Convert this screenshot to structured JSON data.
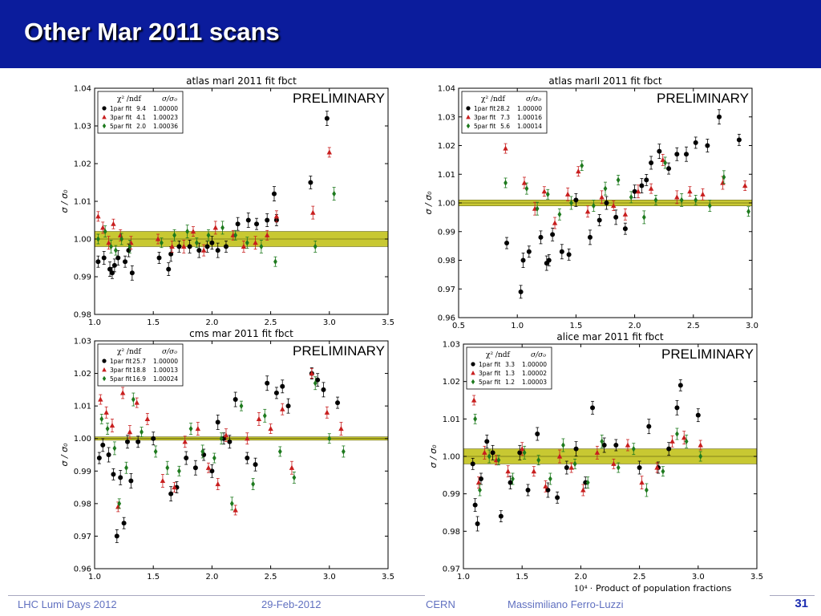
{
  "slide": {
    "title": "Other Mar 2011 scans",
    "footer_event": "LHC Lumi Days 2012",
    "footer_date": "29-Feb-2012",
    "footer_org": "CERN",
    "footer_author": "Massimiliano Ferro-Luzzi",
    "page_number": "31"
  },
  "colors": {
    "title_bar": "#0b1c9c",
    "series_1par": "#000000",
    "series_3par": "#c81e1e",
    "series_5par": "#1e7a1e",
    "band_fill": "#c8c832"
  },
  "chart_data": [
    {
      "type": "scatter",
      "title": "atlas marI 2011 fit  fbct",
      "annotation": "PRELIMINARY",
      "ylabel": "σ / σ₀",
      "xlabel": "",
      "xlim": [
        1.0,
        3.5
      ],
      "ylim": [
        0.98,
        1.04
      ],
      "xticks": [
        "1.0",
        "1.5",
        "2.0",
        "2.5",
        "3.0",
        "3.5"
      ],
      "yticks": [
        "0.98",
        "0.99",
        "1.00",
        "1.01",
        "1.02",
        "1.03",
        "1.04"
      ],
      "grid": false,
      "legend_position": "top-left",
      "legend_header": [
        "χ² /ndf",
        "σ/σ₀"
      ],
      "band": [
        0.998,
        1.002
      ],
      "series": [
        {
          "name": "1par fit",
          "chi2ndf": "9.4",
          "ratio": "1.00000",
          "marker": "circle",
          "x": [
            1.03,
            1.08,
            1.13,
            1.15,
            1.17,
            1.2,
            1.26,
            1.29,
            1.32,
            1.55,
            1.63,
            1.65,
            1.72,
            1.81,
            1.89,
            1.96,
            2.0,
            2.05,
            2.12,
            2.22,
            2.31,
            2.38,
            2.47,
            2.53,
            2.55,
            2.84,
            2.98
          ],
          "y": [
            0.994,
            0.995,
            0.992,
            0.991,
            0.993,
            0.995,
            0.994,
            0.997,
            0.991,
            0.995,
            0.992,
            0.996,
            0.998,
            0.998,
            0.997,
            0.998,
            0.999,
            0.997,
            0.998,
            1.004,
            1.005,
            1.004,
            1.005,
            1.012,
            1.005,
            1.015,
            1.032
          ]
        },
        {
          "name": "3par fit",
          "chi2ndf": "4.1",
          "ratio": "1.00023",
          "marker": "triangle",
          "x": [
            1.03,
            1.07,
            1.12,
            1.16,
            1.22,
            1.31,
            1.54,
            1.66,
            1.76,
            1.84,
            1.93,
            2.03,
            2.18,
            2.27,
            2.37,
            2.47,
            2.55,
            2.86,
            3.0
          ],
          "y": [
            1.006,
            1.003,
            0.999,
            1.004,
            1.001,
            0.999,
            1.0,
            0.998,
            0.998,
            1.002,
            0.997,
            1.003,
            1.001,
            0.998,
            0.999,
            1.001,
            1.006,
            1.007,
            1.023
          ]
        },
        {
          "name": "5par fit",
          "chi2ndf": "2.0",
          "ratio": "1.00036",
          "marker": "diamond",
          "x": [
            1.03,
            1.09,
            1.14,
            1.18,
            1.23,
            1.3,
            1.57,
            1.68,
            1.79,
            1.87,
            1.97,
            2.09,
            2.2,
            2.3,
            2.42,
            2.54,
            2.88,
            3.04
          ],
          "y": [
            1.0,
            1.002,
            0.998,
            0.997,
            1.0,
            0.998,
            0.999,
            1.001,
            1.002,
            0.999,
            1.001,
            1.003,
            1.001,
            0.999,
            0.998,
            0.994,
            0.998,
            1.012
          ]
        }
      ]
    },
    {
      "type": "scatter",
      "title": "atlas marII 2011 fit  fbct",
      "annotation": "PRELIMINARY",
      "ylabel": "σ / σ₀",
      "xlabel": "",
      "xlim": [
        0.5,
        3.0
      ],
      "ylim": [
        0.96,
        1.04
      ],
      "xticks": [
        "0.5",
        "1.0",
        "1.5",
        "2.0",
        "2.5",
        "3.0"
      ],
      "yticks": [
        "0.96",
        "0.97",
        "0.98",
        "0.99",
        "1.00",
        "1.01",
        "1.02",
        "1.03",
        "1.04"
      ],
      "grid": false,
      "legend_position": "top-left",
      "legend_header": [
        "χ² /ndf",
        "σ/σ₀"
      ],
      "band": [
        0.999,
        1.001
      ],
      "series": [
        {
          "name": "1par fit",
          "chi2ndf": "28.2",
          "ratio": "1.00000",
          "marker": "circle",
          "x": [
            0.91,
            1.03,
            1.05,
            1.1,
            1.2,
            1.25,
            1.27,
            1.3,
            1.38,
            1.44,
            1.5,
            1.62,
            1.7,
            1.76,
            1.84,
            1.92,
            2.0,
            2.06,
            2.1,
            2.14,
            2.21,
            2.29,
            2.36,
            2.44,
            2.52,
            2.62,
            2.72,
            2.89
          ],
          "y": [
            0.986,
            0.969,
            0.98,
            0.983,
            0.988,
            0.979,
            0.98,
            0.989,
            0.983,
            0.982,
            1.001,
            0.988,
            0.994,
            1.0,
            0.995,
            0.991,
            1.004,
            1.006,
            1.008,
            1.014,
            1.018,
            1.012,
            1.017,
            1.017,
            1.021,
            1.02,
            1.03,
            1.022
          ]
        },
        {
          "name": "3par fit",
          "chi2ndf": "7.3",
          "ratio": "1.00016",
          "marker": "triangle",
          "x": [
            0.9,
            1.06,
            1.15,
            1.23,
            1.32,
            1.43,
            1.52,
            1.6,
            1.72,
            1.82,
            1.92,
            2.03,
            2.14,
            2.24,
            2.36,
            2.47,
            2.58,
            2.75,
            2.94
          ],
          "y": [
            1.019,
            1.007,
            0.998,
            1.004,
            0.993,
            1.003,
            1.011,
            0.997,
            1.002,
            0.999,
            0.996,
            1.004,
            1.005,
            1.015,
            1.002,
            1.004,
            1.003,
            1.007,
            1.006
          ]
        },
        {
          "name": "5par fit",
          "chi2ndf": "5.6",
          "ratio": "1.00014",
          "marker": "diamond",
          "x": [
            0.9,
            1.08,
            1.17,
            1.26,
            1.36,
            1.46,
            1.55,
            1.65,
            1.75,
            1.86,
            1.97,
            2.08,
            2.18,
            2.26,
            2.4,
            2.52,
            2.64,
            2.76,
            2.97
          ],
          "y": [
            1.007,
            1.005,
            0.998,
            1.003,
            0.996,
            1.0,
            1.013,
            0.999,
            1.005,
            1.008,
            1.002,
            0.995,
            1.001,
            1.014,
            1.001,
            1.001,
            0.999,
            1.009,
            0.997
          ]
        }
      ]
    },
    {
      "type": "scatter",
      "title": "cms mar 2011 fit  fbct",
      "annotation": "PRELIMINARY",
      "ylabel": "σ / σ₀",
      "xlabel": "",
      "xlim": [
        1.0,
        3.5
      ],
      "ylim": [
        0.96,
        1.03
      ],
      "xticks": [
        "1.0",
        "1.5",
        "2.0",
        "2.5",
        "3.0",
        "3.5"
      ],
      "yticks": [
        "0.96",
        "0.97",
        "0.98",
        "0.99",
        "1.00",
        "1.01",
        "1.02",
        "1.03"
      ],
      "grid": false,
      "legend_position": "top-left",
      "legend_header": [
        "χ² /ndf",
        "σ/σ₀"
      ],
      "band": [
        0.9995,
        1.0005
      ],
      "series": [
        {
          "name": "1par fit",
          "chi2ndf": "25.7",
          "ratio": "1.00000",
          "marker": "circle",
          "x": [
            1.04,
            1.07,
            1.12,
            1.16,
            1.19,
            1.22,
            1.25,
            1.28,
            1.31,
            1.37,
            1.5,
            1.65,
            1.7,
            1.78,
            1.86,
            1.93,
            2.0,
            2.05,
            2.1,
            2.15,
            2.2,
            2.3,
            2.37,
            2.47,
            2.55,
            2.6,
            2.65,
            2.85,
            2.9,
            2.95,
            3.07
          ],
          "y": [
            0.994,
            0.998,
            0.995,
            0.989,
            0.97,
            0.988,
            0.974,
            0.999,
            0.987,
            0.999,
            1.0,
            0.983,
            0.985,
            0.994,
            0.991,
            0.995,
            0.99,
            1.005,
            1.0,
            0.999,
            1.012,
            0.994,
            0.992,
            1.017,
            1.014,
            1.016,
            1.01,
            1.02,
            1.018,
            1.015,
            1.011
          ]
        },
        {
          "name": "3par fit",
          "chi2ndf": "18.8",
          "ratio": "1.00013",
          "marker": "triangle",
          "x": [
            1.05,
            1.1,
            1.15,
            1.2,
            1.24,
            1.3,
            1.36,
            1.45,
            1.58,
            1.68,
            1.77,
            1.88,
            1.97,
            2.05,
            2.12,
            2.2,
            2.3,
            2.4,
            2.5,
            2.6,
            2.68,
            2.85,
            2.98,
            3.1
          ],
          "y": [
            1.012,
            1.008,
            1.004,
            0.979,
            1.014,
            1.002,
            1.011,
            1.006,
            0.987,
            0.985,
            0.999,
            1.003,
            0.991,
            0.986,
            1.001,
            0.978,
            1.0,
            1.006,
            1.003,
            1.009,
            0.991,
            1.02,
            1.008,
            1.003
          ]
        },
        {
          "name": "5par fit",
          "chi2ndf": "16.9",
          "ratio": "1.00024",
          "marker": "diamond",
          "x": [
            1.06,
            1.11,
            1.17,
            1.21,
            1.27,
            1.33,
            1.4,
            1.52,
            1.62,
            1.72,
            1.82,
            1.92,
            2.02,
            2.08,
            2.17,
            2.25,
            2.35,
            2.45,
            2.58,
            2.7,
            2.88,
            3.0,
            3.12
          ],
          "y": [
            1.006,
            1.003,
            0.997,
            0.98,
            0.991,
            1.012,
            1.002,
            0.996,
            0.991,
            0.99,
            1.003,
            0.996,
            0.994,
            1.0,
            0.98,
            1.01,
            0.986,
            1.007,
            0.996,
            0.988,
            1.017,
            1.0,
            0.996
          ]
        }
      ]
    },
    {
      "type": "scatter",
      "title": "alice mar 2011 fit  fbct",
      "annotation": "PRELIMINARY",
      "ylabel": "σ / σ₀",
      "xlabel": "Product of population fractions",
      "x_scale_label": "10⁴ ·",
      "xlim": [
        1.0,
        3.5
      ],
      "ylim": [
        0.97,
        1.03
      ],
      "xticks": [
        "1.0",
        "1.5",
        "2.0",
        "2.5",
        "3.0",
        "3.5"
      ],
      "yticks": [
        "0.97",
        "0.98",
        "0.99",
        "1.00",
        "1.01",
        "1.02",
        "1.03"
      ],
      "grid": false,
      "legend_position": "top-left",
      "legend_header": [
        "χ² /ndf",
        "σ/σ₀"
      ],
      "band": [
        0.998,
        1.002
      ],
      "series": [
        {
          "name": "1par fit",
          "chi2ndf": "3.3",
          "ratio": "1.00000",
          "marker": "circle",
          "x": [
            1.08,
            1.1,
            1.12,
            1.15,
            1.2,
            1.25,
            1.32,
            1.4,
            1.48,
            1.55,
            1.63,
            1.72,
            1.8,
            1.88,
            1.96,
            2.04,
            2.1,
            2.2,
            2.3,
            2.5,
            2.58,
            2.66,
            2.75,
            2.82,
            2.85,
            3.0
          ],
          "y": [
            0.998,
            0.987,
            0.982,
            0.994,
            1.004,
            1.001,
            0.984,
            0.993,
            1.001,
            0.991,
            1.006,
            0.991,
            0.989,
            0.997,
            1.002,
            0.993,
            1.013,
            1.003,
            1.003,
            0.997,
            1.008,
            0.997,
            1.002,
            1.013,
            1.019,
            1.011
          ]
        },
        {
          "name": "3par fit",
          "chi2ndf": "1.3",
          "ratio": "1.00002",
          "marker": "triangle",
          "x": [
            1.09,
            1.13,
            1.18,
            1.28,
            1.38,
            1.5,
            1.6,
            1.7,
            1.82,
            1.92,
            2.02,
            2.14,
            2.28,
            2.4,
            2.52,
            2.65,
            2.78,
            2.88,
            3.02
          ],
          "y": [
            1.015,
            0.993,
            1.001,
            0.999,
            0.996,
            1.002,
            0.996,
            0.992,
            1.0,
            0.997,
            0.991,
            1.001,
            0.998,
            1.003,
            0.993,
            0.997,
            1.004,
            1.005,
            1.003
          ]
        },
        {
          "name": "5par fit",
          "chi2ndf": "1.2",
          "ratio": "1.00003",
          "marker": "diamond",
          "x": [
            1.1,
            1.14,
            1.22,
            1.3,
            1.42,
            1.52,
            1.64,
            1.74,
            1.85,
            1.95,
            2.06,
            2.18,
            2.32,
            2.45,
            2.56,
            2.7,
            2.82,
            2.9,
            3.02
          ],
          "y": [
            1.01,
            0.991,
            1.0,
            0.999,
            0.994,
            1.001,
            0.999,
            0.994,
            1.003,
            0.998,
            0.993,
            1.004,
            0.997,
            1.002,
            0.991,
            0.996,
            1.006,
            1.004,
            1.0
          ]
        }
      ]
    }
  ]
}
